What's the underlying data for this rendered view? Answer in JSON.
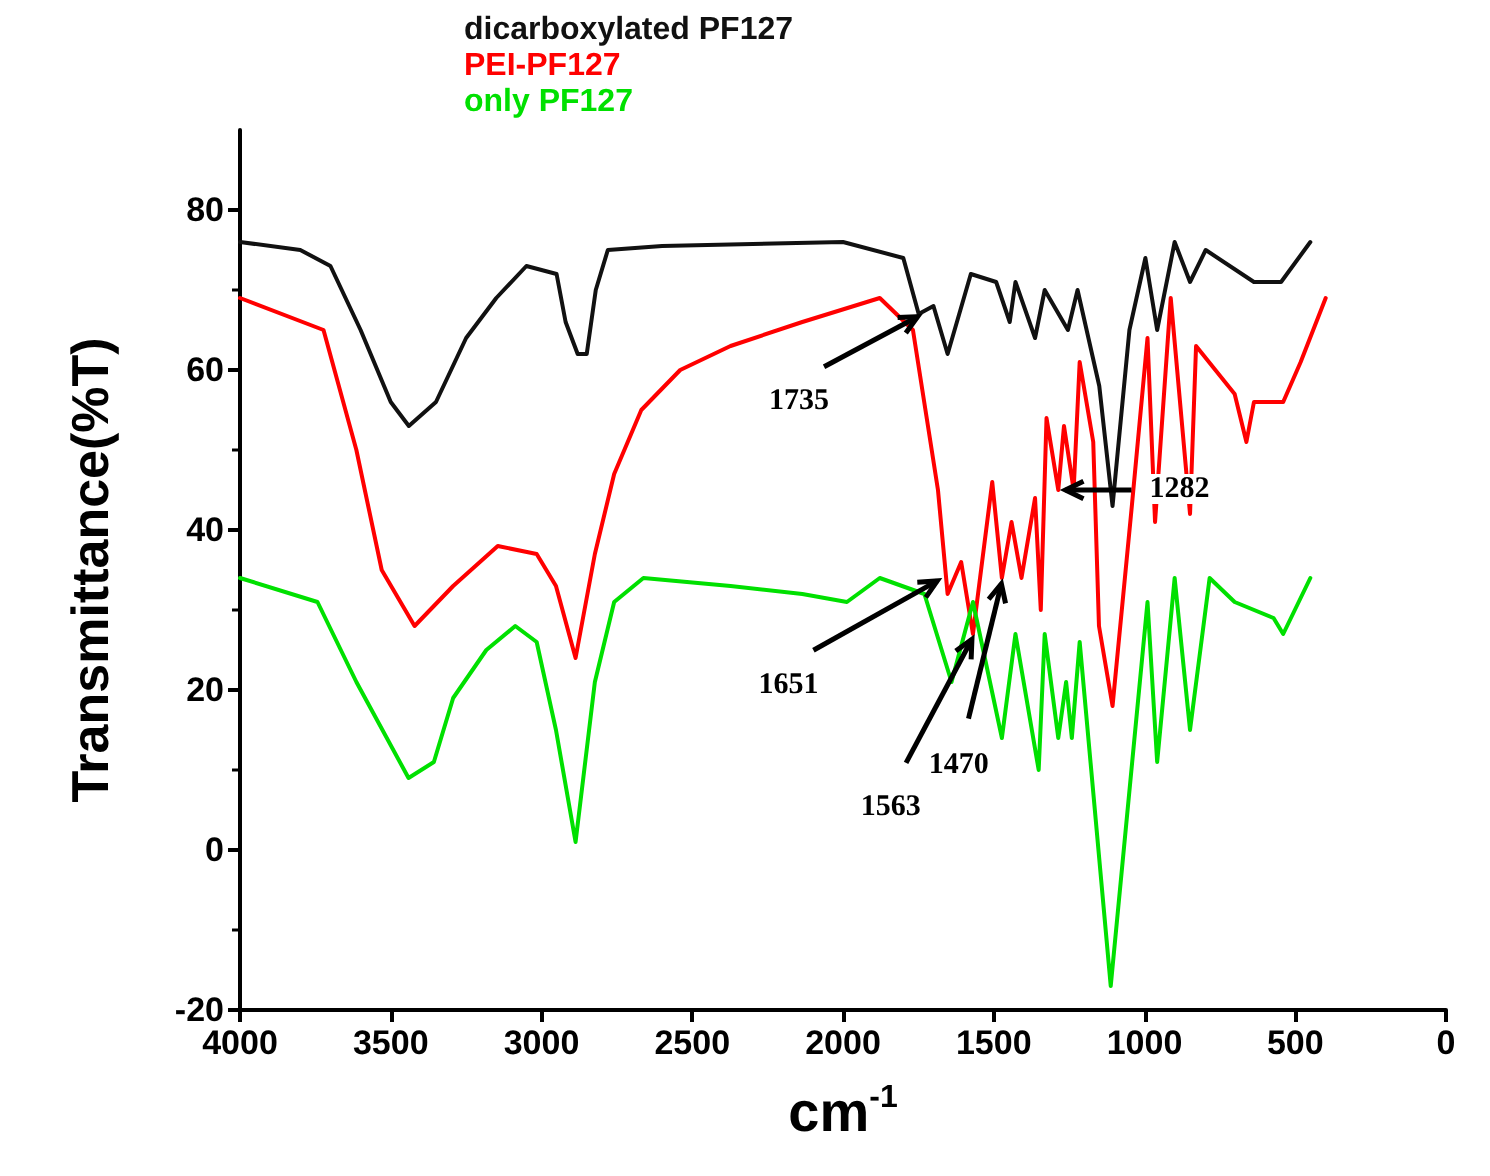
{
  "chart_data": {
    "type": "line",
    "xlabel": "cm$^{-1}$",
    "ylabel": "Transmittance(%T)",
    "xlim": [
      4000,
      0
    ],
    "xticks": [
      4000,
      3500,
      3000,
      2500,
      2000,
      1500,
      1000,
      500,
      0
    ],
    "ylim": [
      -20,
      90
    ],
    "yticks": [
      -20,
      0,
      20,
      40,
      60,
      80
    ],
    "grid": false,
    "legend": "top",
    "marker": "none",
    "line_style": "solid",
    "series": [
      {
        "name": "dicarboxylated PF127",
        "color": "#111111",
        "x": [
          4000,
          3800,
          3700,
          3600,
          3500,
          3440,
          3350,
          3250,
          3150,
          3050,
          2950,
          2920,
          2880,
          2850,
          2820,
          2780,
          2600,
          2000,
          1800,
          1749,
          1700,
          1653,
          1576,
          1492,
          1447,
          1428,
          1363,
          1331,
          1254,
          1222,
          1150,
          1106,
          1050,
          997,
          958,
          900,
          849,
          797,
          637,
          547,
          450
        ],
        "values": [
          76,
          75,
          73,
          65,
          56,
          53,
          56,
          64,
          69,
          73,
          72,
          66,
          62,
          62,
          70,
          75,
          75.5,
          76,
          74,
          67,
          68,
          62,
          72,
          71,
          66,
          71,
          64,
          70,
          65,
          70,
          58,
          43,
          65,
          74,
          65,
          76,
          71,
          75,
          71,
          71,
          76
        ]
      },
      {
        "name": "PEI-PF127",
        "color": "#ff0000",
        "x": [
          4000,
          3723,
          3614,
          3530,
          3421,
          3293,
          3145,
          3016,
          2952,
          2887,
          2823,
          2759,
          2669,
          2540,
          2373,
          2135,
          1878,
          1768,
          1685,
          1653,
          1608,
          1569,
          1505,
          1473,
          1441,
          1408,
          1363,
          1344,
          1325,
          1286,
          1267,
          1235,
          1215,
          1170,
          1151,
          1106,
          1042,
          990,
          965,
          913,
          849,
          829,
          701,
          662,
          637,
          540,
          482,
          399
        ],
        "values": [
          69,
          65,
          50,
          35,
          28,
          33,
          38,
          37,
          33,
          24,
          37,
          47,
          55,
          60,
          63,
          66,
          69,
          65,
          45,
          32,
          36,
          27,
          46,
          34,
          41,
          34,
          44,
          30,
          54,
          45,
          53,
          45,
          61,
          51,
          28,
          18,
          43,
          64,
          41,
          69,
          42,
          63,
          57,
          51,
          56,
          56,
          61,
          69
        ]
      },
      {
        "name": "only PF127",
        "color": "#00e000",
        "x": [
          4000,
          3743,
          3614,
          3441,
          3357,
          3293,
          3183,
          3087,
          3016,
          2952,
          2887,
          2823,
          2759,
          2662,
          2373,
          2135,
          1987,
          1878,
          1730,
          1640,
          1569,
          1473,
          1428,
          1351,
          1331,
          1286,
          1260,
          1241,
          1215,
          1112,
          990,
          958,
          900,
          849,
          784,
          701,
          572,
          540,
          450
        ],
        "values": [
          34,
          31,
          21,
          9,
          11,
          19,
          25,
          28,
          26,
          15,
          1,
          21,
          31,
          34,
          33,
          32,
          31,
          34,
          32,
          21,
          31,
          14,
          27,
          10,
          27,
          14,
          21,
          14,
          26,
          -17,
          31,
          11,
          34,
          15,
          34,
          31,
          29,
          27,
          34
        ]
      }
    ],
    "annotations": [
      {
        "text": "1735",
        "x": 1735,
        "y": 67
      },
      {
        "text": "1651",
        "x": 1670,
        "y": 34
      },
      {
        "text": "1563",
        "x": 1563,
        "y": 27
      },
      {
        "text": "1470",
        "x": 1470,
        "y": 34
      },
      {
        "text": "1282",
        "x": 1282,
        "y": 45
      }
    ]
  }
}
